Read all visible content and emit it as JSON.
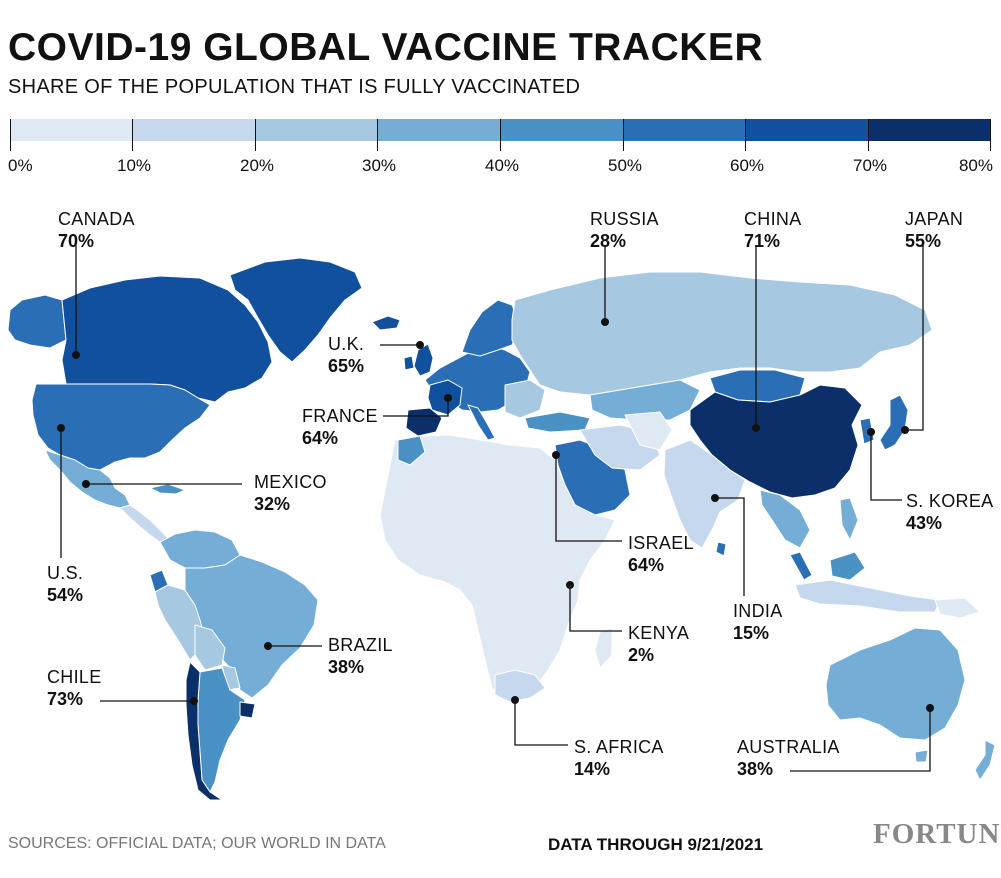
{
  "title": "COVID-19 GLOBAL VACCINE TRACKER",
  "subtitle": "SHARE OF THE POPULATION THAT IS FULLY VACCINATED",
  "legend": {
    "ticks": [
      "0%",
      "10%",
      "20%",
      "30%",
      "40%",
      "50%",
      "60%",
      "70%",
      "80%"
    ],
    "colors": [
      "#dfe9f4",
      "#c6d8ed",
      "#a6c8e0",
      "#74aed6",
      "#4a91c6",
      "#2a6fb5",
      "#10509c",
      "#0b2f68"
    ]
  },
  "callouts": [
    {
      "id": "canada",
      "name": "CANADA",
      "value": "70%"
    },
    {
      "id": "russia",
      "name": "RUSSIA",
      "value": "28%"
    },
    {
      "id": "china",
      "name": "CHINA",
      "value": "71%"
    },
    {
      "id": "japan",
      "name": "JAPAN",
      "value": "55%"
    },
    {
      "id": "uk",
      "name": "U.K.",
      "value": "65%"
    },
    {
      "id": "france",
      "name": "FRANCE",
      "value": "64%"
    },
    {
      "id": "mexico",
      "name": "MEXICO",
      "value": "32%"
    },
    {
      "id": "us",
      "name": "U.S.",
      "value": "54%"
    },
    {
      "id": "skorea",
      "name": "S. KOREA",
      "value": "43%"
    },
    {
      "id": "israel",
      "name": "ISRAEL",
      "value": "64%"
    },
    {
      "id": "india",
      "name": "INDIA",
      "value": "15%"
    },
    {
      "id": "kenya",
      "name": "KENYA",
      "value": "2%"
    },
    {
      "id": "brazil",
      "name": "BRAZIL",
      "value": "38%"
    },
    {
      "id": "chile",
      "name": "CHILE",
      "value": "73%"
    },
    {
      "id": "safrica",
      "name": "S. AFRICA",
      "value": "14%"
    },
    {
      "id": "australia",
      "name": "AUSTRALIA",
      "value": "38%"
    }
  ],
  "footer": {
    "sources": "SOURCES: OFFICIAL DATA; OUR WORLD IN DATA",
    "date": "DATA THROUGH 9/21/2021",
    "logo": "FORTUNE"
  }
}
